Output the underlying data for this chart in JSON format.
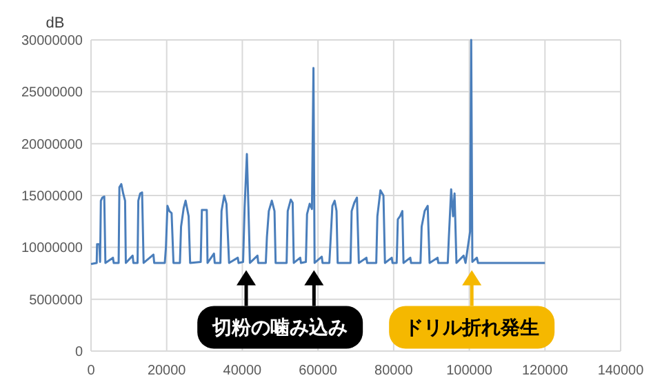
{
  "chart_data": {
    "type": "line",
    "ylabel": "dB",
    "xlim": [
      0,
      140000
    ],
    "xticks": [
      0,
      20000,
      40000,
      60000,
      80000,
      100000,
      120000,
      140000
    ],
    "ylim": [
      0,
      30000000
    ],
    "yticks": [
      0,
      5000000,
      10000000,
      15000000,
      20000000,
      25000000,
      30000000
    ],
    "grid": true,
    "marker": "none",
    "line_style": "solid",
    "series": [
      {
        "color": "#4a7ebb",
        "x": [
          0,
          1500,
          1600,
          2200,
          2400,
          2600,
          3000,
          3500,
          3800,
          5800,
          6000,
          7300,
          7500,
          8000,
          8500,
          9000,
          9200,
          11000,
          11200,
          12300,
          12500,
          13000,
          13500,
          13900,
          16500,
          16700,
          19500,
          19800,
          20200,
          20700,
          21300,
          21800,
          23500,
          23800,
          24500,
          25000,
          25800,
          26200,
          29000,
          29300,
          30000,
          30600,
          30800,
          32500,
          32700,
          34200,
          34500,
          35200,
          35800,
          36500,
          38800,
          39000,
          40200,
          40600,
          41200,
          41600,
          42000,
          44000,
          44200,
          46200,
          46500,
          47000,
          47800,
          48500,
          48800,
          51700,
          52000,
          52800,
          53300,
          53600,
          55300,
          55500,
          56800,
          57100,
          57800,
          58400,
          58800,
          59100,
          61000,
          61200,
          63000,
          63300,
          63800,
          64400,
          64900,
          65200,
          68600,
          68900,
          69600,
          70300,
          70800,
          72800,
          73000,
          75400,
          75700,
          76500,
          77300,
          77700,
          79500,
          79700,
          80800,
          81100,
          81700,
          82300,
          82600,
          84400,
          84600,
          87100,
          87400,
          88200,
          89000,
          89500,
          91600,
          91800,
          94300,
          94600,
          95200,
          95700,
          96100,
          96600,
          98500,
          99000,
          100200,
          100500,
          100800,
          102000,
          102300,
          110000,
          120000
        ],
        "values": [
          8400000,
          8500000,
          10300000,
          10300000,
          8600000,
          14500000,
          14800000,
          14900000,
          8500000,
          9000000,
          8500000,
          8500000,
          15800000,
          16100000,
          15200000,
          14500000,
          8500000,
          9200000,
          8500000,
          8500000,
          14500000,
          15200000,
          15300000,
          8500000,
          9300000,
          8500000,
          8500000,
          10000000,
          14000000,
          13500000,
          13300000,
          8500000,
          8500000,
          12000000,
          13800000,
          14500000,
          13000000,
          8500000,
          8600000,
          13600000,
          13600000,
          13600000,
          8500000,
          9400000,
          8500000,
          8500000,
          13500000,
          15000000,
          14200000,
          8500000,
          9000000,
          8500000,
          8600000,
          13800000,
          19000000,
          14000000,
          8500000,
          9200000,
          8500000,
          8500000,
          11000000,
          13500000,
          14500000,
          13500000,
          8500000,
          8500000,
          13500000,
          14600000,
          14300000,
          8500000,
          9000000,
          8500000,
          8600000,
          13200000,
          14200000,
          13700000,
          27300000,
          8500000,
          9100000,
          8500000,
          8500000,
          10500000,
          14000000,
          14500000,
          13500000,
          8500000,
          8500000,
          13500000,
          14300000,
          14800000,
          8500000,
          9000000,
          8500000,
          8500000,
          13000000,
          15500000,
          15000000,
          8500000,
          9000000,
          8500000,
          8500000,
          12700000,
          13000000,
          13500000,
          8500000,
          9000000,
          8500000,
          8500000,
          12000000,
          13500000,
          14000000,
          8500000,
          9000000,
          8500000,
          8500000,
          11000000,
          15600000,
          13000000,
          15200000,
          8500000,
          9200000,
          8500000,
          11500000,
          30000000,
          8600000,
          9000000,
          8500000,
          8500000,
          8500000
        ]
      }
    ],
    "annotations": [
      "切粉の噛み込み",
      "ドリル折れ発生"
    ]
  }
}
